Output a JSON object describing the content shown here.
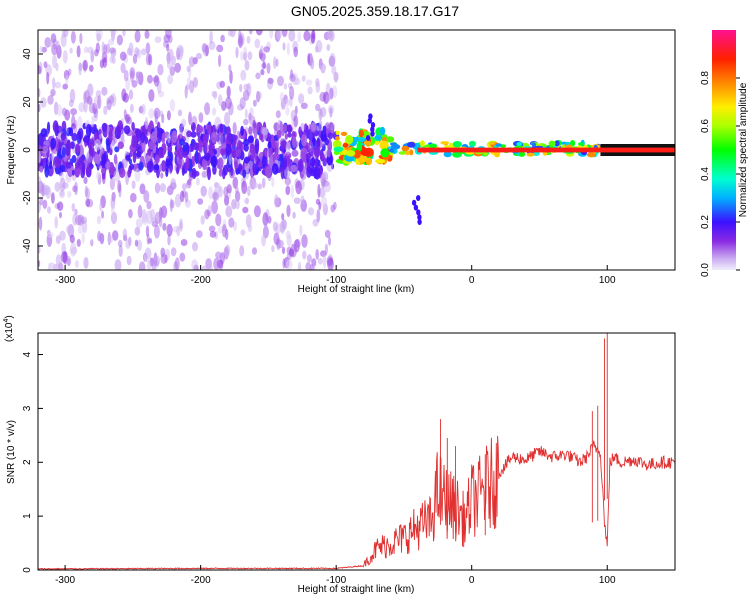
{
  "title": "GN05.2025.359.18.17.G17",
  "chart_data": [
    {
      "type": "heatmap",
      "name": "spectrogram",
      "xlabel": "Height of straight line (km)",
      "ylabel": "Frequency (Hz)",
      "xlim": [
        -320,
        150
      ],
      "ylim": [
        -50,
        50
      ],
      "xticks": [
        -300,
        -200,
        -100,
        0,
        100
      ],
      "yticks": [
        -40,
        -20,
        0,
        20,
        40
      ],
      "colorbar": {
        "label": "Normalized spectral amplitude",
        "range": [
          0,
          1
        ],
        "ticks": [
          0.0,
          0.2,
          0.4,
          0.6,
          0.8
        ]
      },
      "regions": [
        {
          "x": [
            -320,
            -100
          ],
          "description_level": "noise",
          "freq_spread": [
            -50,
            50
          ],
          "core_band": [
            -10,
            10
          ],
          "amplitude": [
            0.0,
            0.2
          ]
        },
        {
          "x": [
            -100,
            -60
          ],
          "description_level": "onset",
          "freq_band": [
            -5,
            8
          ],
          "amplitude": [
            0.3,
            0.9
          ]
        },
        {
          "x": [
            -60,
            95
          ],
          "description_level": "signal",
          "freq_band": [
            -2,
            3
          ],
          "amplitude": [
            0.2,
            0.8
          ]
        },
        {
          "x": [
            95,
            150
          ],
          "description_level": "steady",
          "freq_band": [
            -1,
            1
          ],
          "amplitude": [
            0.8,
            1.0
          ]
        }
      ],
      "features": [
        {
          "x": -40,
          "freq_range": [
            -30,
            -20
          ],
          "note": "downward streak"
        },
        {
          "x": -75,
          "freq_range": [
            5,
            14
          ],
          "note": "upward streak"
        }
      ]
    },
    {
      "type": "line",
      "name": "snr",
      "xlabel": "Height of straight line (km)",
      "ylabel": "SNR (10 * v/v)",
      "yscale_label": "(x10",
      "yscale_exp": "4",
      "xlim": [
        -320,
        150
      ],
      "ylim": [
        0,
        4.4
      ],
      "xticks": [
        -300,
        -200,
        -100,
        0,
        100
      ],
      "yticks": [
        0,
        1,
        2,
        3,
        4
      ],
      "color": "#e03030",
      "series": [
        {
          "name": "SNR",
          "x": [
            -320,
            -200,
            -100,
            -80,
            -70,
            -60,
            -50,
            -40,
            -30,
            -25,
            -20,
            -15,
            -10,
            -5,
            0,
            5,
            10,
            15,
            20,
            25,
            30,
            40,
            50,
            60,
            70,
            80,
            85,
            90,
            95,
            98,
            100,
            102,
            105,
            110,
            120,
            130,
            140,
            150
          ],
          "y": [
            0.02,
            0.03,
            0.03,
            0.08,
            0.4,
            0.5,
            0.6,
            0.8,
            0.9,
            1.5,
            1.3,
            1.2,
            1.1,
            0.9,
            1.3,
            1.35,
            1.5,
            1.6,
            1.8,
            1.95,
            2.1,
            2.05,
            2.2,
            2.1,
            2.15,
            2.0,
            2.1,
            2.3,
            2.2,
            0.9,
            0.45,
            2.0,
            2.1,
            2.0,
            2.05,
            1.95,
            2.0,
            2.0
          ]
        }
      ],
      "spikes": [
        {
          "x": -23,
          "y": 2.8
        },
        {
          "x": -18,
          "y": 2.45
        },
        {
          "x": -12,
          "y": 2.3
        },
        {
          "x": 10,
          "y": 2.15
        },
        {
          "x": 89,
          "y": 2.95
        },
        {
          "x": 93,
          "y": 3.05
        },
        {
          "x": 98,
          "y": 4.3
        },
        {
          "x": 100,
          "y": 4.4
        }
      ]
    }
  ]
}
